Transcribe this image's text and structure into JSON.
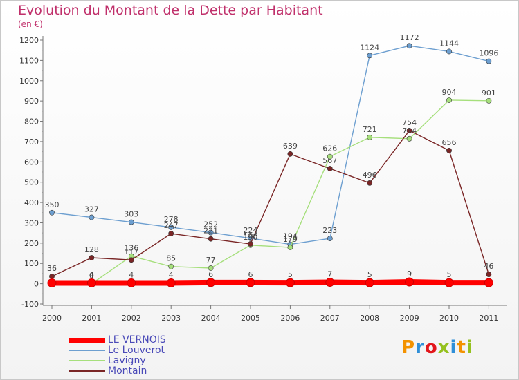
{
  "header": {
    "title": "Evolution du Montant de la Dette par Habitant",
    "unit": "(en €)"
  },
  "logo": {
    "text": "Proxiti",
    "colors": [
      "#f39200",
      "#2f8fd8",
      "#e2161b",
      "#95c11f",
      "#2f8fd8",
      "#f39200",
      "#95c11f"
    ]
  },
  "chart_data": {
    "type": "line",
    "title": "Evolution du Montant de la Dette par Habitant",
    "ylabel": "(en €)",
    "xlabel": "",
    "x": [
      "2000",
      "2001",
      "2002",
      "2003",
      "2004",
      "2005",
      "2006",
      "2007",
      "2008",
      "2009",
      "2010",
      "2011"
    ],
    "yticks": [
      "-100",
      "0",
      "100",
      "200",
      "300",
      "400",
      "500",
      "600",
      "700",
      "800",
      "900",
      "1000",
      "1100",
      "1200"
    ],
    "ylim": [
      -100,
      1200
    ],
    "grid": false,
    "legend_position": "bottom-left",
    "series": [
      {
        "name": "LE VERNOIS",
        "color": "#ff0000",
        "values": [
          4,
          4,
          4,
          4,
          6,
          6,
          5,
          7,
          5,
          9,
          5,
          5
        ],
        "labels": [
          "",
          "4",
          "4",
          "4",
          "6",
          "6",
          "5",
          "7",
          "5",
          "9",
          "5",
          ""
        ]
      },
      {
        "name": "Le Louverot",
        "color": "#6d9fd0",
        "values": [
          350,
          327,
          303,
          278,
          252,
          224,
          194,
          223,
          1124,
          1172,
          1144,
          1096
        ],
        "labels": [
          "350",
          "327",
          "303",
          "278",
          "252",
          "224",
          "194",
          "223",
          "1124",
          "1172",
          "1144",
          "1096"
        ]
      },
      {
        "name": "Lavigny",
        "color": "#a6df7c",
        "values": [
          7,
          0,
          136,
          85,
          77,
          190,
          179,
          626,
          721,
          714,
          904,
          901
        ],
        "labels": [
          "",
          "0",
          "136",
          "85",
          "77",
          "190",
          "179",
          "626",
          "721",
          "714",
          "904",
          "901"
        ]
      },
      {
        "name": "Montain",
        "color": "#7a2626",
        "values": [
          36,
          128,
          117,
          247,
          221,
          196,
          639,
          567,
          496,
          754,
          656,
          46
        ],
        "labels": [
          "36",
          "128",
          "117",
          "247",
          "221",
          "196",
          "639",
          "567",
          "496",
          "754",
          "656",
          "46"
        ]
      }
    ]
  }
}
